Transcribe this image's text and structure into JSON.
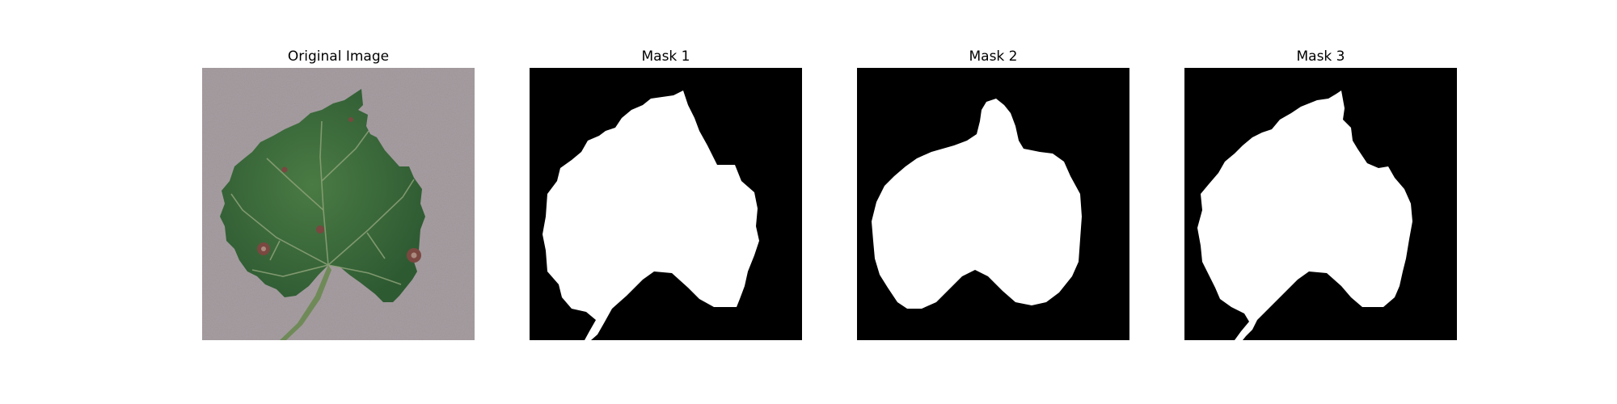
{
  "figure": {
    "panels": [
      {
        "title": "Original Image",
        "kind": "photo"
      },
      {
        "title": "Mask 1",
        "kind": "mask"
      },
      {
        "title": "Mask 2",
        "kind": "mask"
      },
      {
        "title": "Mask 3",
        "kind": "mask"
      }
    ],
    "colors": {
      "background": "#ffffff",
      "photo_background": "#a89fa3",
      "leaf_green": "#3f6e3c",
      "leaf_dark": "#2f5a31",
      "vein": "#8fa57a",
      "lesion": "#7a4a40",
      "mask_background": "#000000",
      "mask_foreground": "#ffffff"
    }
  }
}
